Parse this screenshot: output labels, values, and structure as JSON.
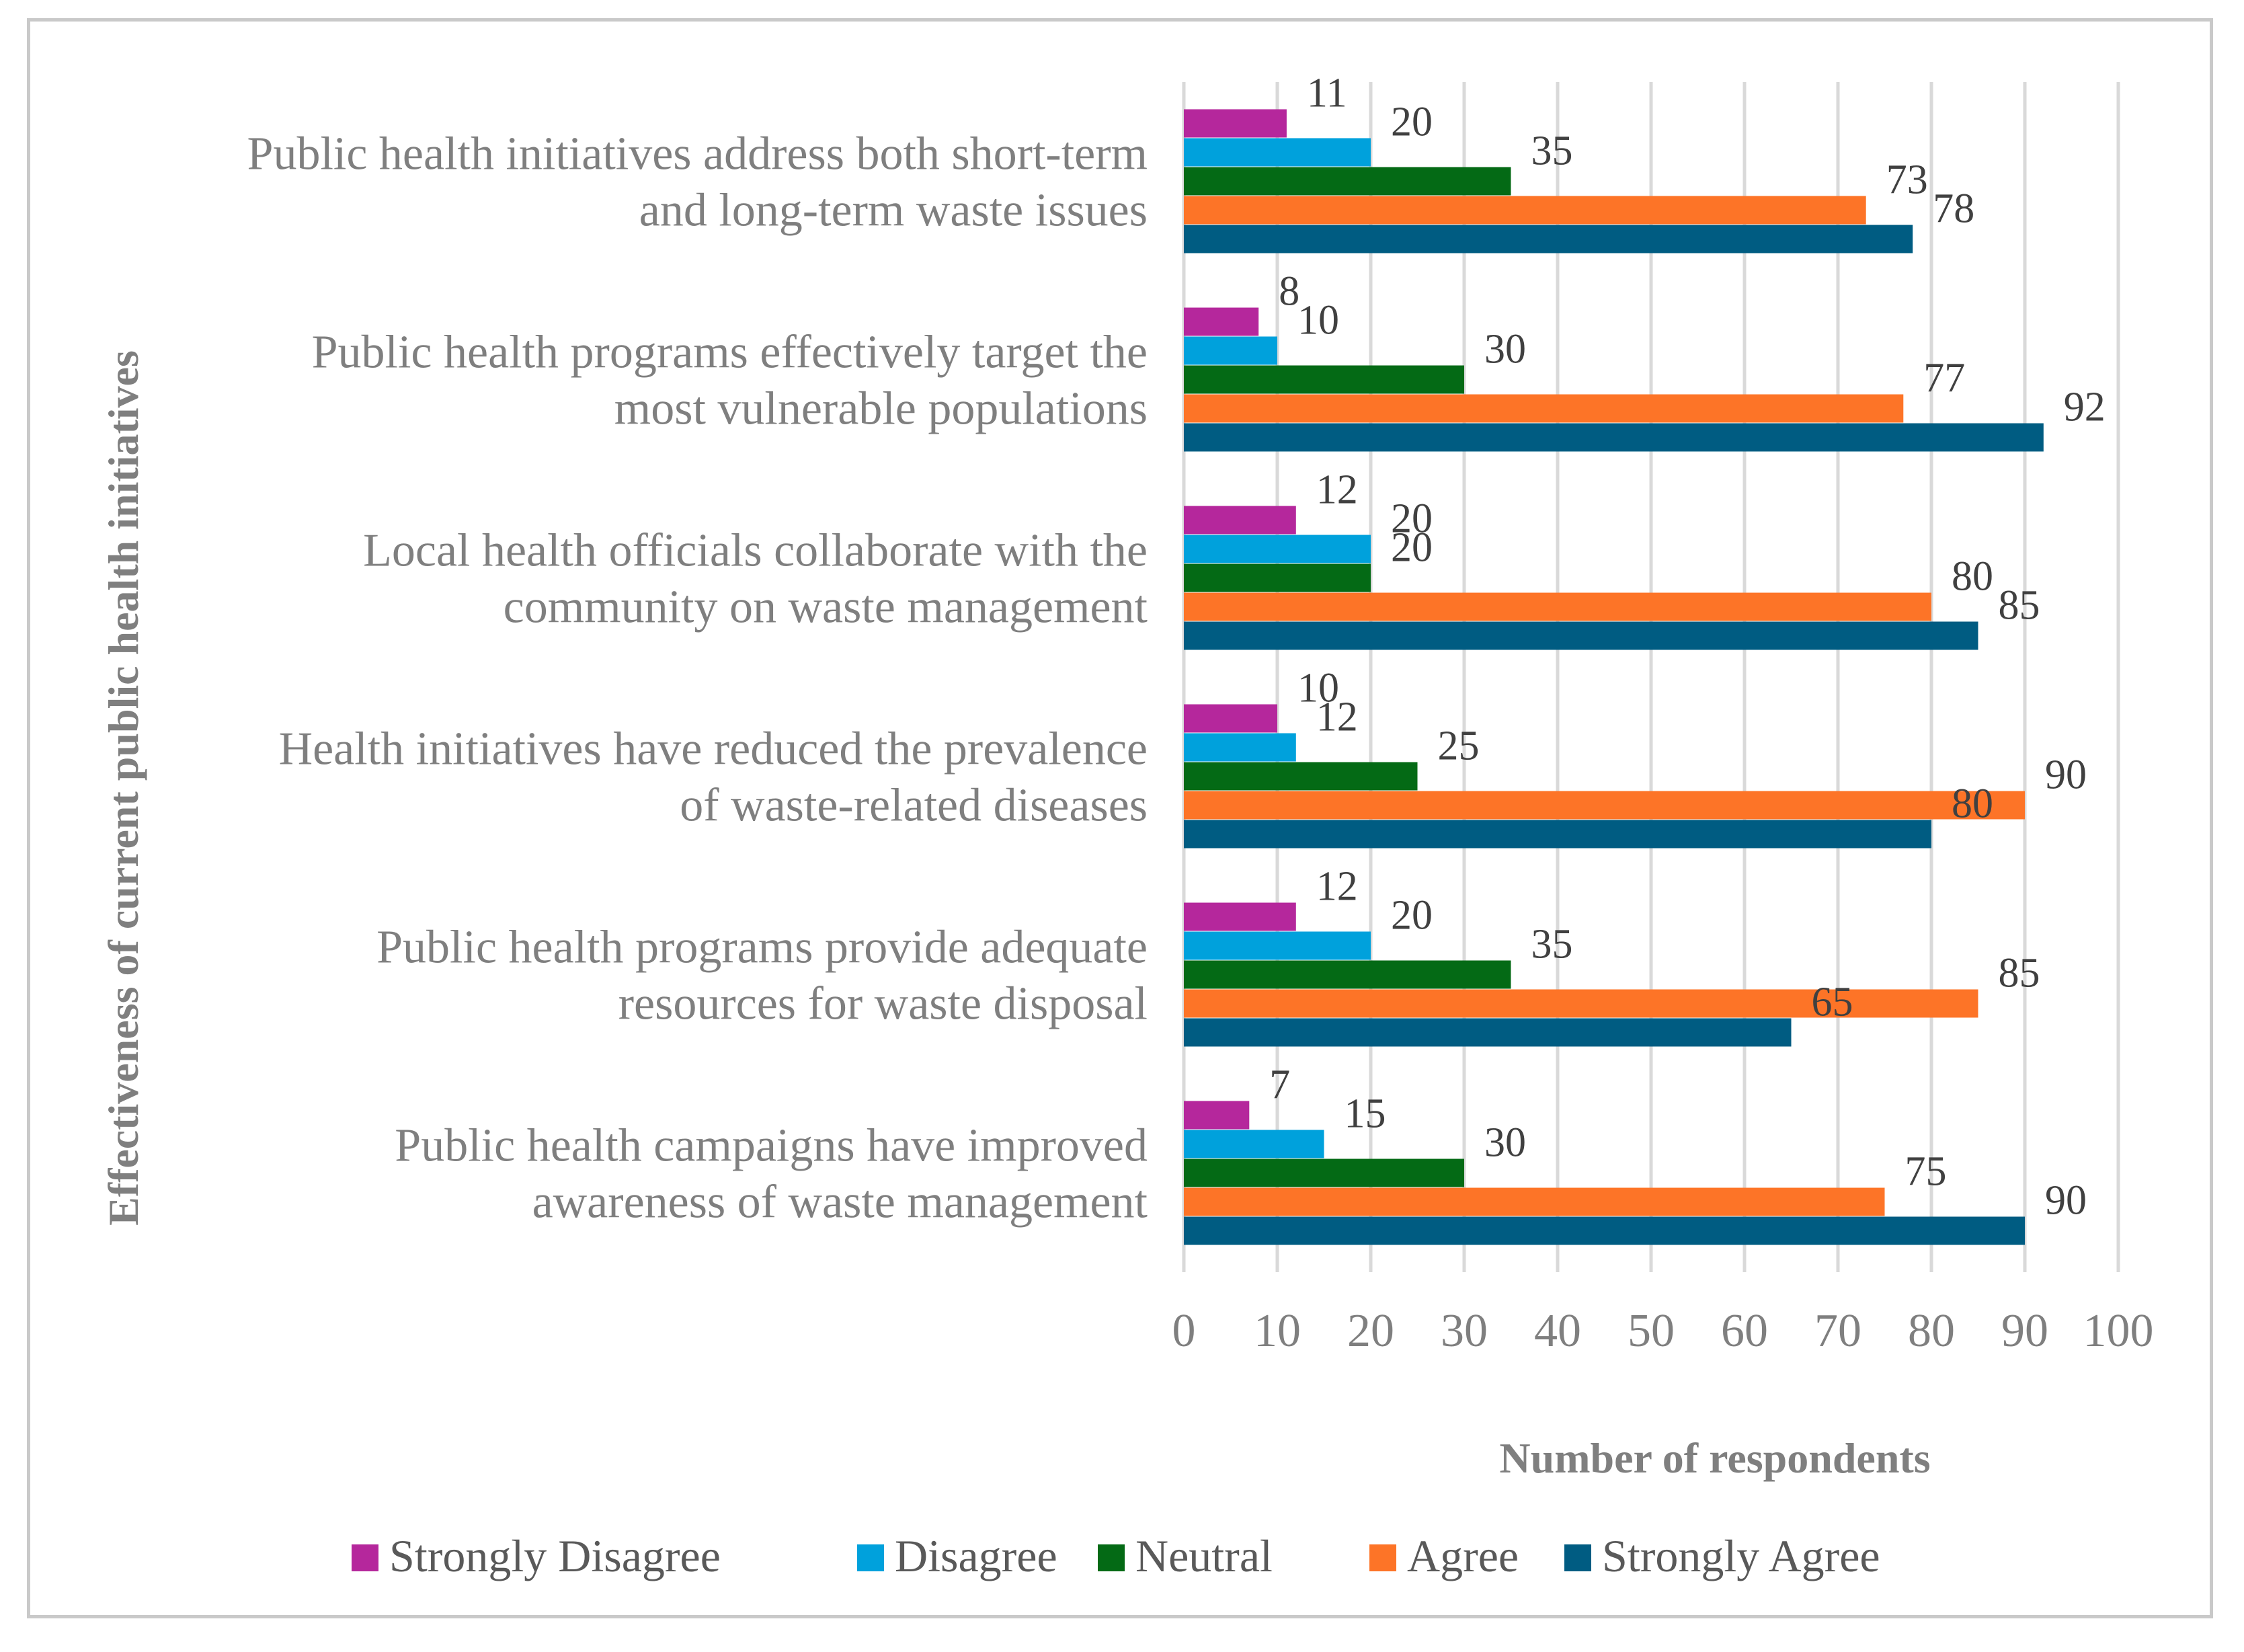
{
  "chart_data": {
    "type": "bar",
    "orientation": "horizontal",
    "title": "",
    "xlabel": "Number of respondents",
    "ylabel": "Effectiveness of current public health initiatives",
    "xlim": [
      0,
      100
    ],
    "xticks": [
      "0",
      "10",
      "20",
      "30",
      "40",
      "50",
      "60",
      "70",
      "80",
      "90",
      "100"
    ],
    "grid": true,
    "legend_position": "bottom",
    "categories": [
      [
        "Public health initiatives address both short-term",
        "and long-term waste issues"
      ],
      [
        "Public health programs effectively target the",
        "most vulnerable populations"
      ],
      [
        "Local health officials collaborate with the",
        "community on waste management"
      ],
      [
        "Health initiatives have reduced the prevalence",
        "of waste-related diseases"
      ],
      [
        "Public health programs provide adequate",
        "resources for waste disposal"
      ],
      [
        "Public health campaigns have improved",
        "awareness of waste management"
      ]
    ],
    "series": [
      {
        "name": "Strongly Disagree",
        "color": "#b5279c",
        "values": [
          11,
          8,
          12,
          10,
          12,
          7
        ]
      },
      {
        "name": "Disagree",
        "color": "#00a1dc",
        "values": [
          20,
          10,
          20,
          12,
          20,
          15
        ]
      },
      {
        "name": "Neutral",
        "color": "#046a15",
        "values": [
          35,
          30,
          20,
          25,
          35,
          30
        ]
      },
      {
        "name": "Agree",
        "color": "#fd7427",
        "values": [
          73,
          77,
          80,
          90,
          85,
          75
        ]
      },
      {
        "name": "Strongly Agree",
        "color": "#005c82",
        "values": [
          78,
          92,
          85,
          80,
          65,
          90
        ]
      }
    ]
  }
}
